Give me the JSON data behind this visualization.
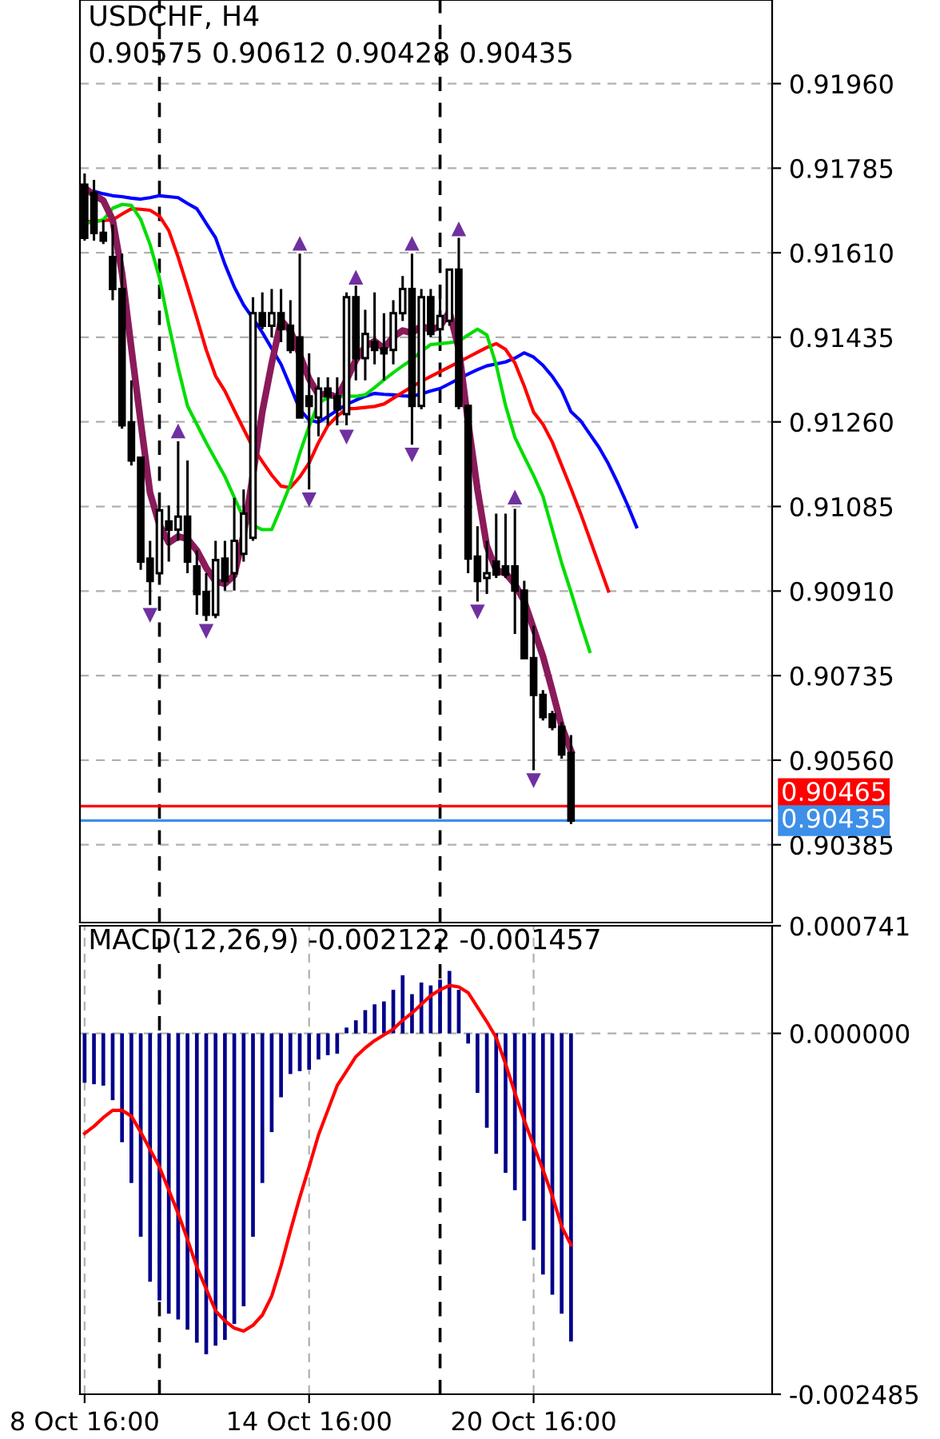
{
  "chart_data": [
    {
      "type": "candlestick",
      "title": "USDCHF, H4",
      "annotations": [
        "0.90575 0.90612 0.90428 0.90435"
      ],
      "categories": [
        null,
        null,
        null,
        null,
        null,
        null,
        null,
        null,
        null,
        null,
        null,
        null,
        null,
        null,
        null,
        null,
        null,
        null,
        null,
        null,
        null,
        null,
        null,
        null,
        null,
        null,
        null,
        null,
        null,
        null,
        null,
        null,
        null,
        null,
        null,
        null,
        null,
        null,
        null,
        null,
        null,
        null,
        null,
        null,
        null,
        null,
        null,
        null,
        null,
        null,
        null,
        null,
        null,
        null,
        null,
        null,
        null,
        null,
        null,
        null,
        null,
        null,
        null,
        null,
        null,
        null,
        null,
        null,
        null,
        null,
        null,
        null,
        null,
        null
      ],
      "ohlc": [
        [
          0.91751,
          0.91774,
          0.91635,
          0.91641
        ],
        [
          0.91734,
          0.91761,
          0.91635,
          0.91651
        ],
        [
          0.91651,
          0.91678,
          0.91628,
          0.91635
        ],
        [
          0.91601,
          0.91668,
          0.91512,
          0.91535
        ],
        [
          0.91535,
          0.91608,
          0.91246,
          0.91253
        ],
        [
          0.91259,
          0.91346,
          0.9117,
          0.9118
        ],
        [
          0.91186,
          0.91186,
          0.90954,
          0.90971
        ],
        [
          0.90977,
          0.91014,
          0.90881,
          0.90931
        ],
        [
          0.90947,
          0.91103,
          0.90947,
          0.91077
        ],
        [
          0.91054,
          0.91087,
          0.90971,
          0.91037
        ],
        [
          0.91037,
          0.9122,
          0.91014,
          0.91064
        ],
        [
          0.91064,
          0.9118,
          0.90947,
          0.90971
        ],
        [
          0.90961,
          0.90994,
          0.90861,
          0.90904
        ],
        [
          0.90908,
          0.90947,
          0.90848,
          0.90861
        ],
        [
          0.90861,
          0.91014,
          0.90854,
          0.90974
        ],
        [
          0.90977,
          0.91014,
          0.90911,
          0.90931
        ],
        [
          0.90947,
          0.91103,
          0.90911,
          0.91014
        ],
        [
          0.90987,
          0.9112,
          0.90971,
          0.9107
        ],
        [
          0.9102,
          0.91518,
          0.91014,
          0.91485
        ],
        [
          0.91485,
          0.91528,
          0.91452,
          0.91459
        ],
        [
          0.91459,
          0.91535,
          0.91435,
          0.91485
        ],
        [
          0.91485,
          0.91535,
          0.91425,
          0.91452
        ],
        [
          0.91459,
          0.91512,
          0.91402,
          0.91409
        ],
        [
          0.91435,
          0.91608,
          0.91269,
          0.91269
        ],
        [
          0.91313,
          0.91402,
          0.9112,
          0.91293
        ],
        [
          0.91269,
          0.91352,
          0.9123,
          0.91329
        ],
        [
          0.91329,
          0.91352,
          0.91253,
          0.91313
        ],
        [
          0.91313,
          0.91352,
          0.91253,
          0.91286
        ],
        [
          0.91276,
          0.91528,
          0.91253,
          0.91518
        ],
        [
          0.91518,
          0.91542,
          0.91346,
          0.91392
        ],
        [
          0.91392,
          0.91492,
          0.91346,
          0.91442
        ],
        [
          0.91425,
          0.91528,
          0.91379,
          0.91409
        ],
        [
          0.91412,
          0.91485,
          0.91346,
          0.91402
        ],
        [
          0.91409,
          0.91512,
          0.91379,
          0.91485
        ],
        [
          0.91485,
          0.91562,
          0.91469,
          0.91535
        ],
        [
          0.91535,
          0.91608,
          0.91213,
          0.91293
        ],
        [
          0.91293,
          0.91535,
          0.91286,
          0.91518
        ],
        [
          0.91518,
          0.91535,
          0.91435,
          0.91442
        ],
        [
          0.91452,
          0.91542,
          0.91435,
          0.91479
        ],
        [
          0.91469,
          0.91575,
          0.91459,
          0.91575
        ],
        [
          0.91575,
          0.91641,
          0.91286,
          0.91293
        ],
        [
          0.91293,
          0.91296,
          0.90947,
          0.90977
        ],
        [
          0.90981,
          0.91044,
          0.90888,
          0.90931
        ],
        [
          0.90937,
          0.91014,
          0.90904,
          0.90947
        ],
        [
          0.90971,
          0.9107,
          0.90937,
          0.90944
        ],
        [
          0.90961,
          0.9107,
          0.90937,
          0.90944
        ],
        [
          0.90961,
          0.9108,
          0.90821,
          0.90911
        ],
        [
          0.90911,
          0.90931,
          0.90771,
          0.90771
        ],
        [
          0.90771,
          0.90838,
          0.90539,
          0.90695
        ],
        [
          0.90695,
          0.90705,
          0.90642,
          0.90649
        ],
        [
          0.90655,
          0.90662,
          0.90622,
          0.90629
        ],
        [
          0.90629,
          0.90639,
          0.90563,
          0.90572
        ],
        [
          0.90575,
          0.90612,
          0.90428,
          0.90435
        ],
        null,
        null,
        null,
        null,
        null,
        null,
        null,
        null,
        null,
        null,
        null,
        null,
        null,
        null,
        null,
        null,
        null,
        null,
        null,
        null,
        null
      ],
      "series": [
        {
          "type": "line",
          "color": "#0000ff",
          "values": [
            null,
            0.91737,
            0.91732,
            0.91728,
            0.91726,
            0.91723,
            0.91721,
            0.91724,
            0.91728,
            0.91726,
            0.91724,
            0.91712,
            0.91701,
            0.91671,
            0.91641,
            0.91586,
            0.91539,
            0.91502,
            0.91474,
            0.91445,
            0.91412,
            0.91379,
            0.91333,
            0.91286,
            0.91264,
            0.91259,
            0.91271,
            0.91284,
            0.91296,
            0.91305,
            0.91313,
            0.91319,
            0.91317,
            0.91316,
            0.91314,
            0.91313,
            0.91318,
            0.91324,
            0.91329,
            0.91339,
            0.91349,
            0.91359,
            0.91368,
            0.91376,
            0.9138,
            0.91384,
            0.91392,
            0.91403,
            0.91394,
            0.91377,
            0.91354,
            0.91325,
            0.91281,
            0.91263,
            0.91235,
            0.91207,
            0.91173,
            0.91133,
            0.9109,
            0.91043,
            null,
            null,
            null,
            null,
            null,
            null,
            null,
            null,
            null,
            null,
            null,
            null,
            null,
            null
          ]
        },
        {
          "type": "line",
          "color": "#ff0000",
          "values": [
            0.91674,
            0.91675,
            0.91677,
            0.91678,
            0.9169,
            0.91701,
            0.917,
            0.91698,
            0.91686,
            0.91656,
            0.91601,
            0.91539,
            0.91475,
            0.91409,
            0.91355,
            0.91324,
            0.91284,
            0.91245,
            0.91207,
            0.91178,
            0.9115,
            0.91127,
            0.91124,
            0.91146,
            0.91175,
            0.91217,
            0.91252,
            0.91272,
            0.91287,
            0.91288,
            0.9129,
            0.91292,
            0.91297,
            0.91309,
            0.91321,
            0.91333,
            0.91344,
            0.91354,
            0.91364,
            0.91374,
            0.91384,
            0.91394,
            0.91404,
            0.91414,
            0.91422,
            0.9141,
            0.91382,
            0.91334,
            0.9128,
            0.91255,
            0.91218,
            0.9117,
            0.91122,
            0.91072,
            0.91018,
            0.90964,
            0.9091,
            null,
            null,
            null,
            null,
            null,
            null,
            null,
            null,
            null,
            null,
            null,
            null,
            null,
            null,
            null,
            null,
            null
          ]
        },
        {
          "type": "line",
          "color": "#00dd00",
          "values": [
            0.91671,
            0.91674,
            0.91678,
            0.91702,
            0.9171,
            0.91708,
            0.91679,
            0.91627,
            0.91558,
            0.91461,
            0.91372,
            0.91293,
            0.91255,
            0.91217,
            0.91182,
            0.91147,
            0.91104,
            0.9106,
            0.91046,
            0.91037,
            0.91037,
            0.91083,
            0.91131,
            0.91195,
            0.91251,
            0.91299,
            0.9131,
            0.91312,
            0.91313,
            0.91313,
            0.91316,
            0.91331,
            0.91347,
            0.91362,
            0.91376,
            0.91389,
            0.91406,
            0.9142,
            0.91422,
            0.91424,
            0.91427,
            0.9144,
            0.91452,
            0.9144,
            0.91378,
            0.91294,
            0.91228,
            0.91188,
            0.91149,
            0.91106,
            0.91037,
            0.90968,
            0.90908,
            0.90845,
            0.90785,
            null,
            null,
            null,
            null,
            null,
            null,
            null,
            null,
            null,
            null,
            null,
            null,
            null,
            null,
            null,
            null,
            null,
            null,
            null
          ]
        },
        {
          "type": "line",
          "color": "#8b1a5a",
          "values": [
            0.91744,
            0.9173,
            0.91718,
            0.91678,
            0.91568,
            0.91412,
            0.91259,
            0.91113,
            0.91047,
            0.9101,
            0.91023,
            0.91018,
            0.90994,
            0.90958,
            0.9093,
            0.90925,
            0.90943,
            0.91027,
            0.91151,
            0.91281,
            0.91381,
            0.9147,
            0.91449,
            0.91399,
            0.91349,
            0.91316,
            0.91318,
            0.91311,
            0.91347,
            0.91388,
            0.91416,
            0.91427,
            0.91412,
            0.91436,
            0.91449,
            0.91444,
            0.91459,
            0.9145,
            0.91458,
            0.91488,
            0.91411,
            0.91259,
            0.9112,
            0.91003,
            0.90953,
            0.90947,
            0.90924,
            0.90889,
            0.90832,
            0.90775,
            0.90704,
            0.9063,
            0.90579,
            null,
            null,
            null,
            null,
            null,
            null,
            null,
            null,
            null,
            null,
            null,
            null,
            null,
            null,
            null,
            null,
            null,
            null,
            null,
            null,
            null
          ]
        },
        {
          "type": "scatter",
          "color": "#7030a0",
          "marker": "triangle",
          "values": [
            null,
            null,
            null,
            null,
            null,
            null,
            null,
            null,
            null,
            null,
            0.9124,
            null,
            null,
            null,
            null,
            null,
            null,
            null,
            null,
            null,
            null,
            null,
            null,
            0.91628,
            null,
            null,
            null,
            null,
            null,
            0.91558,
            null,
            null,
            null,
            null,
            null,
            0.91628,
            null,
            null,
            null,
            null,
            0.91658,
            null,
            null,
            null,
            null,
            null,
            0.91103,
            null,
            null,
            null,
            null,
            null,
            null,
            null,
            null,
            null,
            null,
            null,
            null,
            null,
            null,
            null,
            null,
            null,
            null,
            null,
            null,
            null,
            null,
            null,
            null,
            null,
            null,
            null
          ]
        },
        {
          "type": "scatter",
          "color": "#7030a0",
          "marker": "triangle",
          "values": [
            null,
            null,
            null,
            null,
            null,
            null,
            null,
            0.90861,
            null,
            null,
            null,
            null,
            null,
            0.90828,
            null,
            null,
            null,
            null,
            null,
            null,
            null,
            null,
            null,
            null,
            0.911,
            null,
            null,
            null,
            0.9123,
            null,
            null,
            null,
            null,
            null,
            null,
            0.91193,
            null,
            null,
            null,
            null,
            null,
            null,
            0.90868,
            null,
            null,
            null,
            null,
            null,
            0.90519,
            null,
            null,
            null,
            null,
            null,
            null,
            null,
            null,
            null,
            null,
            null,
            null,
            null,
            null,
            null,
            null,
            null,
            null,
            null,
            null,
            null,
            null,
            null,
            null,
            null
          ]
        }
      ],
      "ylim": [
        0.90224,
        0.92133
      ],
      "yticks": [
        {
          "value": 0.9196,
          "label": "0.91960"
        },
        {
          "value": 0.91785,
          "label": "0.91785"
        },
        {
          "value": 0.9161,
          "label": "0.91610"
        },
        {
          "value": 0.91435,
          "label": "0.91435"
        },
        {
          "value": 0.9126,
          "label": "0.91260"
        },
        {
          "value": 0.91085,
          "label": "0.91085"
        },
        {
          "value": 0.9091,
          "label": "0.90910"
        },
        {
          "value": 0.90735,
          "label": "0.90735"
        },
        {
          "value": 0.9056,
          "label": "0.90560"
        },
        {
          "value": 0.90385,
          "label": "0.90385"
        }
      ],
      "ref_lines": [
        {
          "axis": "y",
          "value": 0.90465,
          "label": "0.90465",
          "color": "#ff0000"
        },
        {
          "axis": "y",
          "value": 0.90435,
          "label": "0.90435",
          "color": "#3d8fe8"
        }
      ],
      "grid": true,
      "tick_labels": "y"
    },
    {
      "type": "bar",
      "title": "MACD(12,26,9) -0.002122 -0.001457",
      "categories": [
        "8 Oct 16:00",
        null,
        null,
        null,
        null,
        null,
        null,
        null,
        null,
        null,
        null,
        null,
        null,
        null,
        null,
        null,
        null,
        null,
        null,
        null,
        null,
        null,
        null,
        null,
        "14 Oct 16:00",
        null,
        null,
        null,
        null,
        null,
        null,
        null,
        null,
        null,
        null,
        null,
        null,
        null,
        null,
        null,
        null,
        null,
        null,
        null,
        null,
        null,
        null,
        null,
        "20 Oct 16:00",
        null,
        null,
        null,
        null,
        null,
        null,
        null,
        null,
        null,
        null,
        null,
        null,
        null,
        null,
        null,
        null,
        null,
        null,
        null,
        null,
        null,
        null,
        null,
        null,
        null
      ],
      "series": [
        {
          "type": "bar",
          "color": "#00008b",
          "values": [
            -0.00034,
            -0.00035,
            -0.00036,
            -0.00046,
            -0.00075,
            -0.00103,
            -0.0014,
            -0.00171,
            -0.00184,
            -0.00193,
            -0.00197,
            -0.00204,
            -0.00213,
            -0.00221,
            -0.00215,
            -0.00211,
            -0.002,
            -0.00188,
            -0.0014,
            -0.00103,
            -0.00068,
            -0.00044,
            -0.00028,
            -0.00026,
            -0.00025,
            -0.00018,
            -0.00015,
            -0.00014,
            4e-05,
            9e-05,
            0.00016,
            0.0002,
            0.00022,
            0.0003,
            0.0004,
            0.00027,
            0.00035,
            0.00033,
            0.00037,
            0.00043,
            0.0003,
            -7e-05,
            -0.00041,
            -0.00065,
            -0.00083,
            -0.00096,
            -0.00108,
            -0.00129,
            -0.00149,
            -0.00166,
            -0.0018,
            -0.00193,
            -0.002122,
            null,
            null,
            null,
            null,
            null,
            null,
            null,
            null,
            null,
            null,
            null,
            null,
            null,
            null,
            null,
            null,
            null,
            null,
            null,
            null,
            null
          ]
        },
        {
          "type": "line",
          "color": "#ff0000",
          "values": [
            -0.00069,
            -0.00064,
            -0.00058,
            -0.00053,
            -0.00053,
            -0.00057,
            -0.00068,
            -0.0008,
            -0.00092,
            -0.00108,
            -0.00124,
            -0.00142,
            -0.00161,
            -0.00176,
            -0.00191,
            -0.00198,
            -0.00203,
            -0.00205,
            -0.00201,
            -0.00194,
            -0.00181,
            -0.0016,
            -0.00136,
            -0.00113,
            -0.00092,
            -0.0007,
            -0.00053,
            -0.00036,
            -0.00026,
            -0.00016,
            -0.0001,
            -5e-05,
            -1e-05,
            3e-05,
            9e-05,
            0.00014,
            0.0002,
            0.00026,
            0.0003,
            0.00033,
            0.00032,
            0.00028,
            0.00018,
            8e-05,
            -3e-05,
            -0.00021,
            -0.00041,
            -0.0006,
            -0.00077,
            -0.00094,
            -0.00112,
            -0.00133,
            -0.001457,
            null,
            null,
            null,
            null,
            null,
            null,
            null,
            null,
            null,
            null,
            null,
            null,
            null,
            null,
            null,
            null,
            null,
            null,
            null,
            null,
            null
          ]
        }
      ],
      "ylim": [
        -0.002485,
        0.000741
      ],
      "yticks": [
        {
          "value": 0.000741,
          "label": "0.000741"
        },
        {
          "value": 0,
          "label": "0.000000"
        },
        {
          "value": -0.002485,
          "label": "-0.002485"
        }
      ],
      "grid": true
    }
  ]
}
